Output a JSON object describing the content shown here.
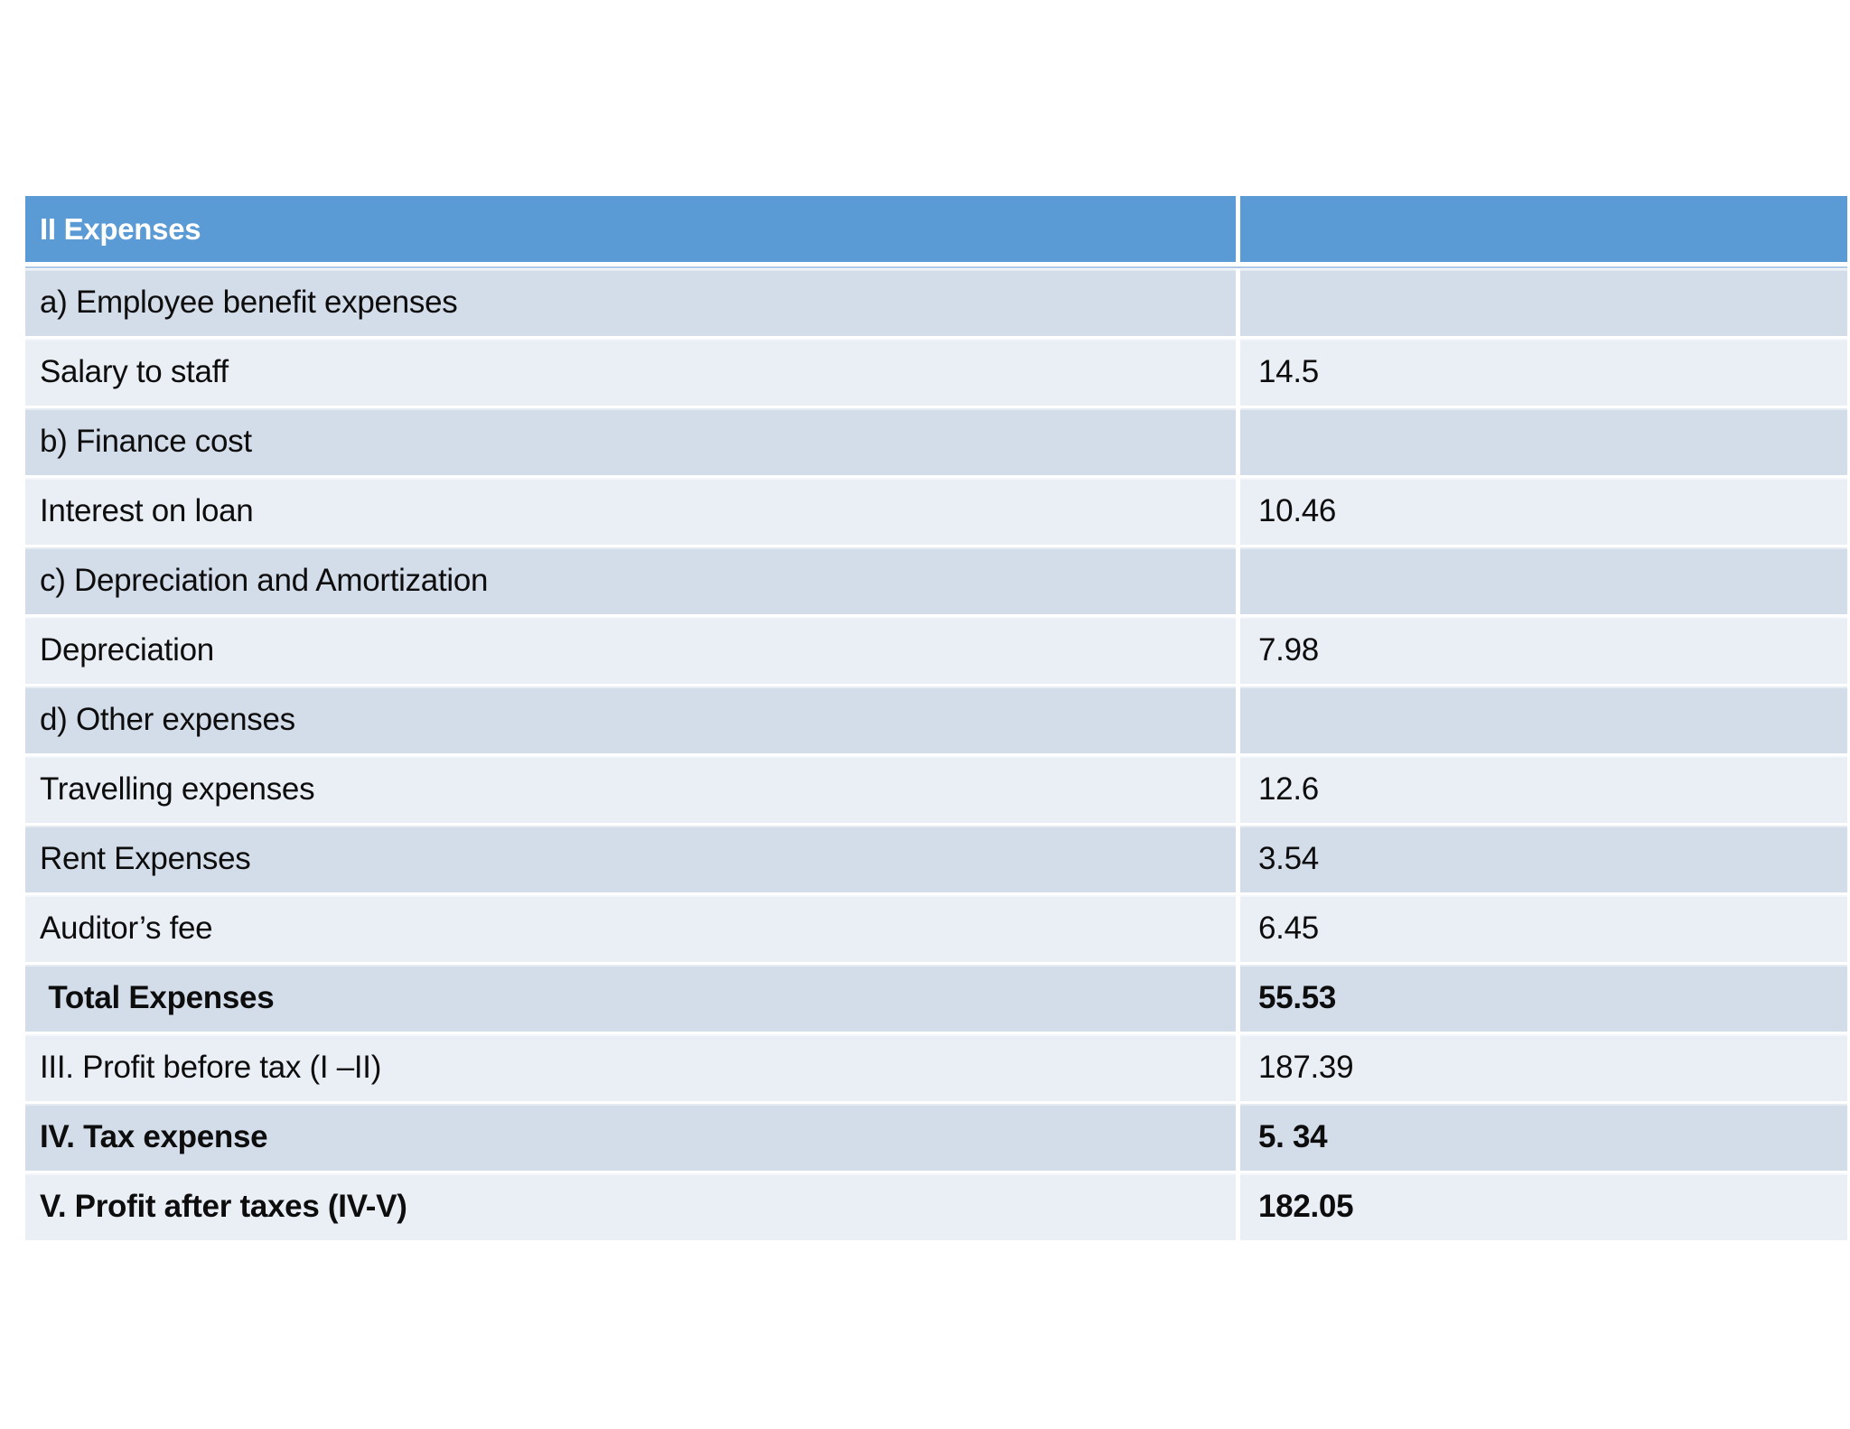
{
  "table": {
    "header": {
      "label": "II Expenses",
      "value": ""
    },
    "rows": [
      {
        "label": "a) Employee benefit expenses",
        "value": "",
        "bold": false
      },
      {
        "label": "Salary to staff",
        "value": "14.5",
        "bold": false
      },
      {
        "label": "b) Finance cost",
        "value": "",
        "bold": false
      },
      {
        "label": "Interest on loan",
        "value": "10.46",
        "bold": false
      },
      {
        "label": "c) Depreciation and Amortization",
        "value": "",
        "bold": false
      },
      {
        "label": "Depreciation",
        "value": "7.98",
        "bold": false
      },
      {
        "label": "d) Other expenses",
        "value": "",
        "bold": false
      },
      {
        "label": "Travelling expenses",
        "value": "12.6",
        "bold": false
      },
      {
        "label": "Rent Expenses",
        "value": "3.54",
        "bold": false
      },
      {
        "label": "Auditor’s fee",
        "value": "6.45",
        "bold": false
      },
      {
        "label": " Total Expenses",
        "value": "55.53",
        "bold": true
      },
      {
        "label": "III. Profit before tax (I –II)",
        "value": "187.39",
        "bold": false
      },
      {
        "label": "IV. Tax expense",
        "value": "5. 34",
        "bold": true
      },
      {
        "label": "V. Profit after taxes (IV-V)",
        "value": "182.05",
        "bold": true
      }
    ]
  },
  "colors": {
    "header_bg": "#5B9BD5",
    "header_text": "#FFFFFF",
    "band_dark": "#D3DCE9",
    "band_light": "#EAEFF6",
    "divider_line": "#AEC8E8",
    "body_text": "#0D0D0D",
    "page_bg": "#FFFFFF"
  }
}
